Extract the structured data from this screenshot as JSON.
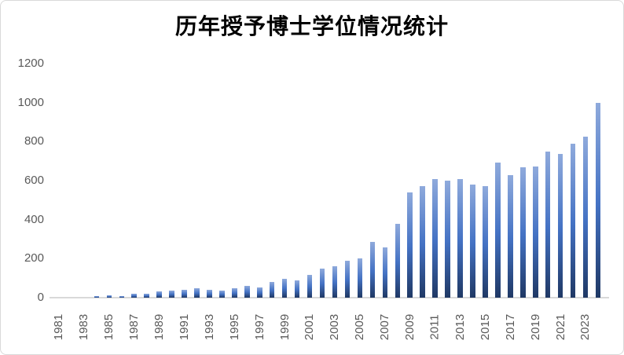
{
  "window": {
    "background": "#ffffff",
    "border_color": "#d9d9d9"
  },
  "chart_data": {
    "type": "bar",
    "title": "历年授予博士学位情况统计",
    "xlabel": "",
    "ylabel": "",
    "x": [
      1981,
      1982,
      1983,
      1984,
      1985,
      1986,
      1987,
      1988,
      1989,
      1990,
      1991,
      1992,
      1993,
      1994,
      1995,
      1996,
      1997,
      1998,
      1999,
      2000,
      2001,
      2002,
      2003,
      2004,
      2005,
      2006,
      2007,
      2008,
      2009,
      2010,
      2011,
      2012,
      2013,
      2014,
      2015,
      2016,
      2017,
      2018,
      2019,
      2020,
      2021,
      2022,
      2023,
      2024
    ],
    "values": [
      0,
      0,
      0,
      8,
      12,
      10,
      20,
      22,
      33,
      38,
      42,
      48,
      42,
      35,
      48,
      60,
      52,
      80,
      95,
      90,
      115,
      150,
      162,
      190,
      200,
      285,
      258,
      378,
      538,
      570,
      608,
      602,
      608,
      578,
      572,
      692,
      628,
      668,
      672,
      750,
      738,
      788,
      825,
      1000
    ],
    "ylim": [
      0,
      1200
    ],
    "y_ticks": [
      0,
      200,
      400,
      600,
      800,
      1000,
      1200
    ],
    "x_tick_labels": [
      "1981",
      "1983",
      "1985",
      "1987",
      "1989",
      "1991",
      "1993",
      "1995",
      "1997",
      "1999",
      "2001",
      "2003",
      "2005",
      "2007",
      "2009",
      "2011",
      "2013",
      "2015",
      "2017",
      "2019",
      "2021",
      "2023"
    ],
    "grid": false,
    "legend": "none",
    "bar_gradient_top": "#8faadc",
    "bar_gradient_mid": "#4472c4",
    "bar_gradient_bottom": "#1f3864",
    "axis_color": "#d9d9d9",
    "tick_label_color": "#595959",
    "title_color": "#000000"
  }
}
